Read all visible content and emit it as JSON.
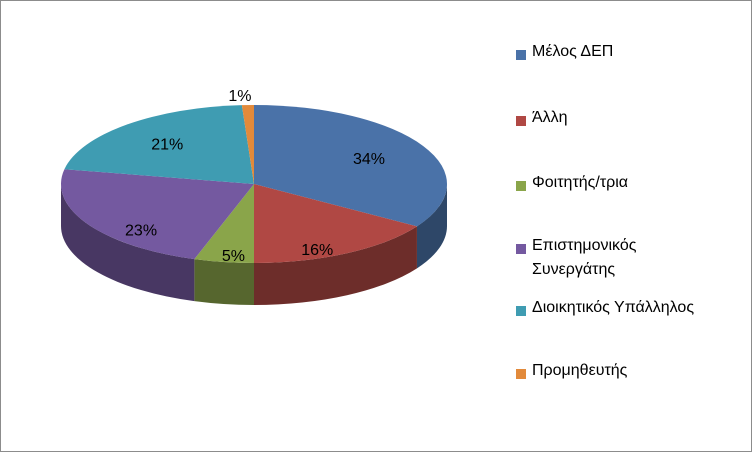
{
  "chart_data": {
    "type": "pie",
    "style": "3d",
    "title": "",
    "categories": [
      "Μέλος ΔΕΠ",
      "Άλλη",
      "Φοιτητής/τρια",
      "Επιστημονικός Συνεργάτης",
      "Διοικητικός Υπάλληλος",
      "Προμηθευτής"
    ],
    "values": [
      34,
      16,
      5,
      23,
      21,
      1
    ],
    "labels": [
      "34%",
      "16%",
      "5%",
      "23%",
      "21%",
      "1%"
    ],
    "colors": [
      "#4a72a8",
      "#b04844",
      "#8aa54a",
      "#7459a0",
      "#3f9cb2",
      "#e28a3b"
    ],
    "legend_position": "right"
  },
  "legend": {
    "items": [
      {
        "label_line1": "Μέλος ΔΕΠ",
        "label_line2": ""
      },
      {
        "label_line1": "Άλλη",
        "label_line2": ""
      },
      {
        "label_line1": "Φοιτητής/τρια",
        "label_line2": ""
      },
      {
        "label_line1": "Επιστημονικός",
        "label_line2": "Συνεργάτης"
      },
      {
        "label_line1": "Διοικητικός Υπάλληλος",
        "label_line2": ""
      },
      {
        "label_line1": "Προμηθευτής",
        "label_line2": ""
      }
    ]
  }
}
